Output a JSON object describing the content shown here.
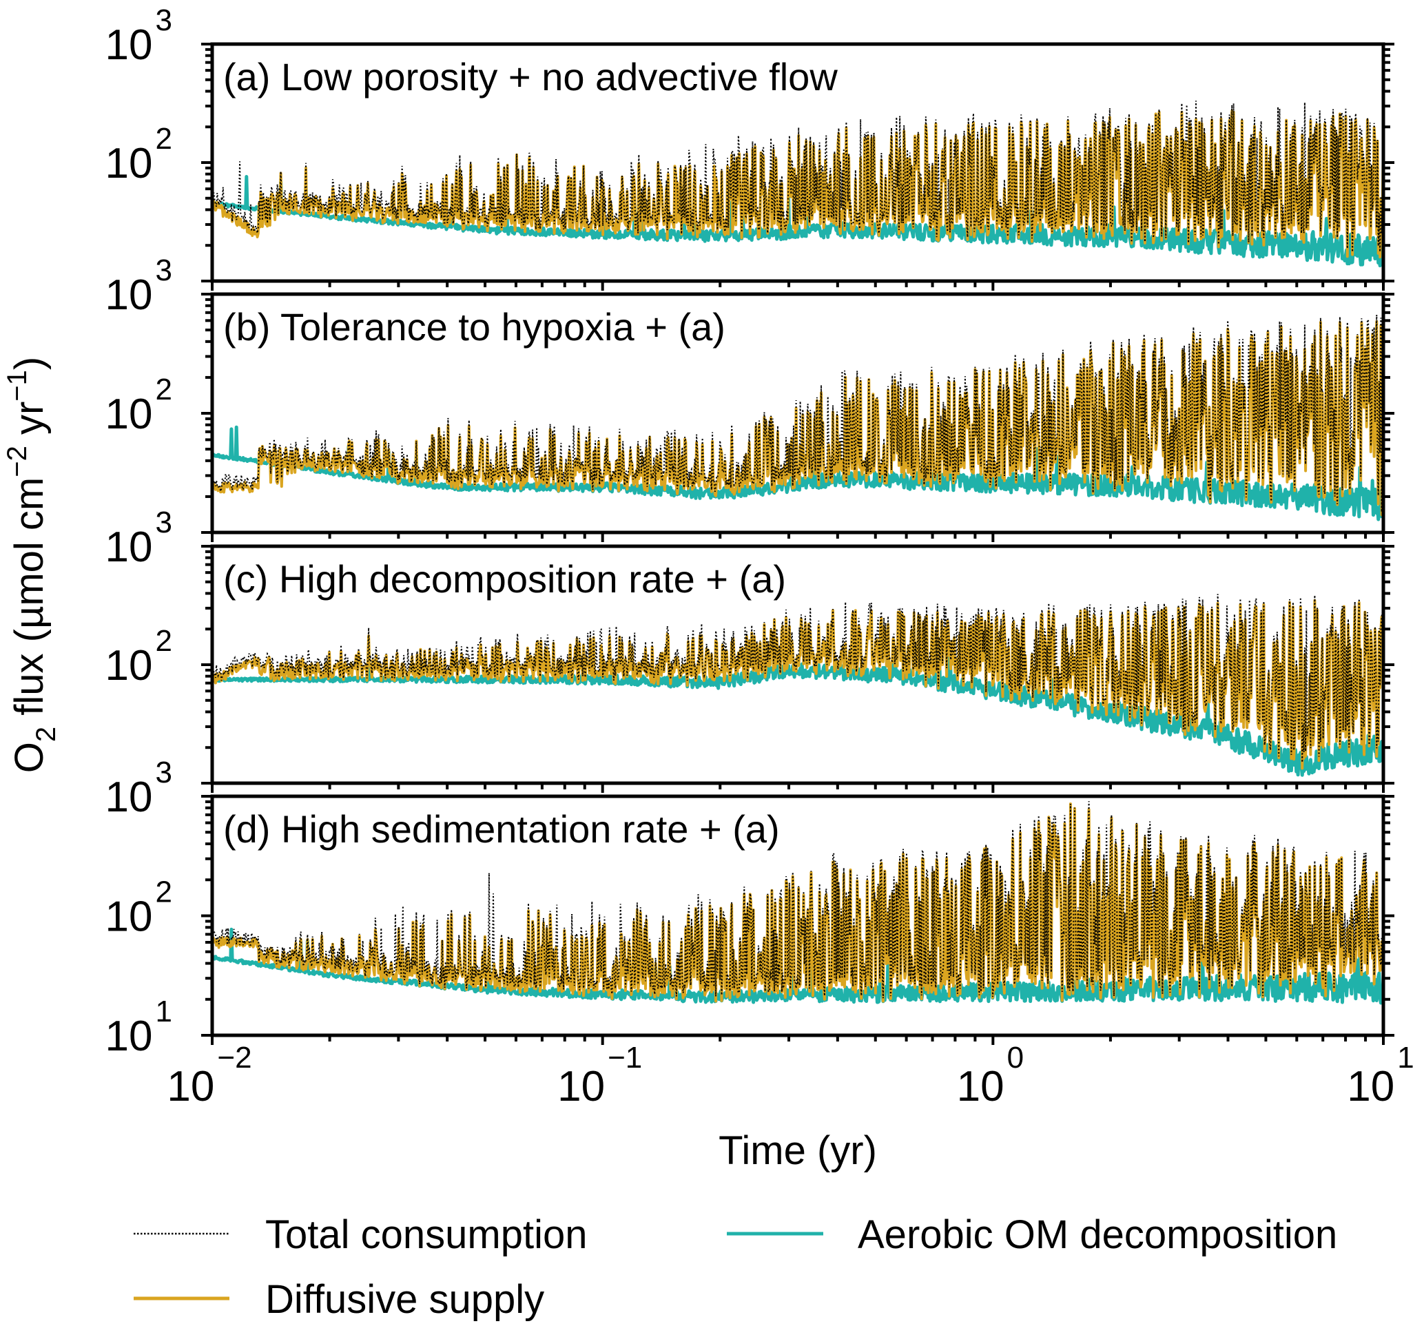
{
  "chart_data": {
    "type": "line",
    "title": "",
    "xlabel": "Time (yr)",
    "ylabel_main": "O",
    "ylabel_sub": "2",
    "ylabel_rest": " flux (µmol cm",
    "ylabel_exp1": "−2",
    "ylabel_mid": " yr",
    "ylabel_exp2": "−1",
    "ylabel_end": ")",
    "xscale": "log",
    "yscale": "log",
    "xlim": [
      0.01,
      10
    ],
    "ylim": [
      10,
      1000
    ],
    "xticks": [
      {
        "base": "10",
        "exp": "−2",
        "value": 0.01
      },
      {
        "base": "10",
        "exp": "−1",
        "value": 0.1
      },
      {
        "base": "10",
        "exp": "0",
        "value": 1
      },
      {
        "base": "10",
        "exp": "1",
        "value": 10
      }
    ],
    "yticks_upper": [
      {
        "base": "10",
        "exp": "3",
        "value": 1000
      },
      {
        "base": "10",
        "exp": "2",
        "value": 100
      }
    ],
    "yticks_bottom": [
      {
        "base": "10",
        "exp": "3",
        "value": 1000
      },
      {
        "base": "10",
        "exp": "2",
        "value": 100
      },
      {
        "base": "10",
        "exp": "1",
        "value": 10
      }
    ],
    "legend": {
      "placement": "bottom",
      "entries": [
        {
          "label": "Total consumption",
          "style": "dotted",
          "color": "#000000"
        },
        {
          "label": "Aerobic OM decomposition",
          "style": "solid",
          "color": "#20B2AA"
        },
        {
          "label": "Diffusive supply",
          "style": "solid",
          "color": "#DAA520"
        }
      ]
    },
    "colors": {
      "total": "#000000",
      "aerobic": "#20B2AA",
      "diffusive": "#DAA520"
    },
    "panels": [
      {
        "label": "(a) Low porosity + no advective flow",
        "series": {
          "aerobic_baseline": {
            "x": [
              0.01,
              0.02,
              0.05,
              0.1,
              0.2,
              0.4,
              1,
              2,
              4,
              10
            ],
            "y": [
              45,
              35,
              27,
              25,
              24,
              27,
              25,
              24,
              21,
              18
            ]
          },
          "diffusive_envelope": {
            "x": [
              0.01,
              0.013,
              0.02,
              0.05,
              0.1,
              0.2,
              0.4,
              1,
              2,
              4,
              10
            ],
            "y": [
              45,
              25,
              60,
              130,
              90,
              120,
              200,
              220,
              250,
              300,
              250
            ]
          },
          "total_envelope": {
            "x": [
              0.01,
              0.013,
              0.02,
              0.05,
              0.1,
              0.2,
              0.4,
              1,
              2,
              4,
              10
            ],
            "y": [
              55,
              170,
              70,
              140,
              110,
              160,
              250,
              280,
              300,
              350,
              300
            ]
          }
        }
      },
      {
        "label": "(b) Tolerance to hypoxia + (a)",
        "series": {
          "aerobic_baseline": {
            "x": [
              0.01,
              0.02,
              0.04,
              0.1,
              0.2,
              0.4,
              1,
              2,
              5,
              10
            ],
            "y": [
              45,
              32,
              24,
              24,
              21,
              28,
              26,
              25,
              21,
              17
            ]
          },
          "diffusive_envelope": {
            "x": [
              0.01,
              0.015,
              0.02,
              0.04,
              0.1,
              0.2,
              0.4,
              1,
              2,
              5,
              10
            ],
            "y": [
              24,
              24,
              55,
              80,
              70,
              60,
              200,
              250,
              400,
              600,
              600
            ]
          },
          "total_envelope": {
            "x": [
              0.01,
              0.015,
              0.02,
              0.04,
              0.1,
              0.2,
              0.4,
              1,
              2,
              5,
              10
            ],
            "y": [
              24,
              60,
              65,
              90,
              80,
              70,
              250,
              300,
              450,
              700,
              650
            ]
          }
        }
      },
      {
        "label": "(c) High decomposition rate + (a)",
        "series": {
          "aerobic_baseline": {
            "x": [
              0.01,
              0.05,
              0.1,
              0.2,
              0.3,
              0.6,
              1,
              2,
              4,
              6,
              10
            ],
            "y": [
              75,
              75,
              75,
              70,
              90,
              80,
              60,
              40,
              25,
              15,
              20
            ]
          },
          "diffusive_envelope": {
            "x": [
              0.01,
              0.015,
              0.03,
              0.08,
              0.2,
              0.4,
              1,
              2,
              5,
              10
            ],
            "y": [
              75,
              130,
              130,
              170,
              200,
              300,
              280,
              300,
              350,
              350
            ]
          },
          "total_envelope": {
            "x": [
              0.01,
              0.015,
              0.03,
              0.08,
              0.2,
              0.4,
              1,
              2,
              5,
              10
            ],
            "y": [
              75,
              140,
              140,
              200,
              250,
              350,
              320,
              350,
              400,
              400
            ]
          }
        }
      },
      {
        "label": "(d) High sedimentation rate + (a)",
        "series": {
          "aerobic_baseline": {
            "x": [
              0.01,
              0.02,
              0.05,
              0.1,
              0.2,
              0.5,
              1,
              2,
              4,
              10
            ],
            "y": [
              45,
              32,
              24,
              22,
              21,
              22,
              23,
              24,
              25,
              25
            ]
          },
          "diffusive_envelope": {
            "x": [
              0.01,
              0.013,
              0.02,
              0.05,
              0.1,
              0.2,
              0.4,
              1,
              1.6,
              3,
              10
            ],
            "y": [
              60,
              60,
              70,
              120,
              100,
              150,
              300,
              400,
              900,
              500,
              300
            ]
          },
          "total_envelope": {
            "x": [
              0.01,
              0.013,
              0.02,
              0.05,
              0.1,
              0.2,
              0.4,
              1,
              1.6,
              3,
              10
            ],
            "y": [
              75,
              80,
              80,
              250,
              130,
              180,
              350,
              450,
              950,
              550,
              350
            ]
          }
        }
      }
    ]
  }
}
